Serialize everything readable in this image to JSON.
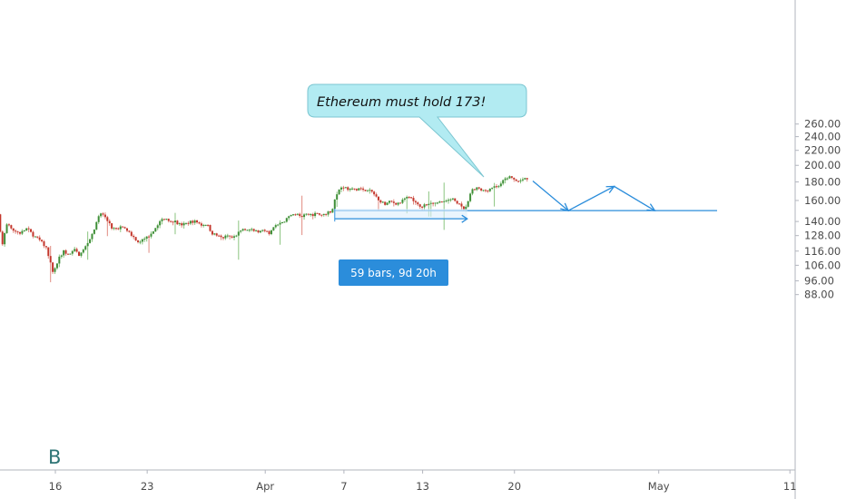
{
  "chart_data": {
    "type": "candlestick",
    "y_scale": "log",
    "ylim": [
      82,
      280
    ],
    "grid": false,
    "y_ticks": [
      "88.00",
      "96.00",
      "106.00",
      "116.00",
      "128.00",
      "140.00",
      "160.00",
      "180.00",
      "200.00",
      "220.00",
      "240.00",
      "260.00"
    ],
    "x_ticks": [
      "16",
      "23",
      "Apr",
      "7",
      "13",
      "20",
      "May",
      "11"
    ],
    "x_tick_days": [
      0,
      7,
      16,
      22,
      28,
      35,
      46,
      56
    ],
    "watermark": "B",
    "colors": {
      "up": "#3e8e37",
      "down": "#c3352b",
      "drawing": "#2b8ddb"
    },
    "price_path": [
      [
        -5.2,
        195
      ],
      [
        -5.1,
        186
      ],
      [
        -4.9,
        176
      ],
      [
        -4.7,
        140
      ],
      [
        -4.5,
        108
      ],
      [
        -4.2,
        146
      ],
      [
        -3.9,
        120
      ],
      [
        -3.5,
        139
      ],
      [
        -3.0,
        132
      ],
      [
        -2.5,
        130
      ],
      [
        -2.0,
        134
      ],
      [
        -1.5,
        128
      ],
      [
        -1.0,
        124
      ],
      [
        -0.5,
        118
      ],
      [
        0.0,
        100
      ],
      [
        0.4,
        110
      ],
      [
        0.8,
        116
      ],
      [
        1.2,
        113
      ],
      [
        1.6,
        117
      ],
      [
        2.0,
        113
      ],
      [
        2.4,
        118
      ],
      [
        2.8,
        126
      ],
      [
        3.1,
        133
      ],
      [
        3.4,
        143
      ],
      [
        3.7,
        148
      ],
      [
        4.1,
        141
      ],
      [
        4.5,
        134
      ],
      [
        4.9,
        133
      ],
      [
        5.3,
        136
      ],
      [
        5.7,
        132
      ],
      [
        6.1,
        127
      ],
      [
        6.5,
        123
      ],
      [
        6.9,
        125
      ],
      [
        7.3,
        128
      ],
      [
        7.7,
        133
      ],
      [
        8.1,
        140
      ],
      [
        8.5,
        143
      ],
      [
        8.9,
        141
      ],
      [
        9.3,
        140
      ],
      [
        9.7,
        137
      ],
      [
        10.1,
        138
      ],
      [
        10.5,
        140
      ],
      [
        10.9,
        140
      ],
      [
        11.3,
        137
      ],
      [
        11.7,
        138
      ],
      [
        12.1,
        130
      ],
      [
        12.5,
        128
      ],
      [
        12.9,
        126
      ],
      [
        13.3,
        128
      ],
      [
        13.7,
        126
      ],
      [
        14.1,
        130
      ],
      [
        14.5,
        134
      ],
      [
        14.9,
        133
      ],
      [
        15.3,
        132
      ],
      [
        15.7,
        131
      ],
      [
        16.1,
        132
      ],
      [
        16.5,
        130
      ],
      [
        16.9,
        136
      ],
      [
        17.3,
        138
      ],
      [
        17.7,
        141
      ],
      [
        18.1,
        146
      ],
      [
        18.5,
        147
      ],
      [
        18.9,
        144
      ],
      [
        19.3,
        146
      ],
      [
        19.7,
        146
      ],
      [
        20.1,
        147
      ],
      [
        20.5,
        146
      ],
      [
        20.9,
        148
      ],
      [
        21.2,
        149
      ],
      [
        21.5,
        161
      ],
      [
        21.8,
        172
      ],
      [
        22.1,
        175
      ],
      [
        22.5,
        172
      ],
      [
        22.9,
        171
      ],
      [
        23.3,
        173
      ],
      [
        23.7,
        170
      ],
      [
        24.1,
        171
      ],
      [
        24.5,
        166
      ],
      [
        24.9,
        160
      ],
      [
        25.3,
        156
      ],
      [
        25.7,
        159
      ],
      [
        26.1,
        157
      ],
      [
        26.5,
        158
      ],
      [
        26.9,
        163
      ],
      [
        27.3,
        162
      ],
      [
        27.7,
        156
      ],
      [
        28.1,
        154
      ],
      [
        28.5,
        157
      ],
      [
        28.9,
        158
      ],
      [
        29.3,
        158
      ],
      [
        29.7,
        159
      ],
      [
        30.1,
        160
      ],
      [
        30.5,
        161
      ],
      [
        30.9,
        157
      ],
      [
        31.3,
        150
      ],
      [
        31.6,
        158
      ],
      [
        31.9,
        170
      ],
      [
        32.3,
        173
      ],
      [
        32.7,
        170
      ],
      [
        33.1,
        171
      ],
      [
        33.5,
        174
      ],
      [
        33.9,
        175
      ],
      [
        34.3,
        181
      ],
      [
        34.7,
        186
      ],
      [
        35.0,
        184
      ],
      [
        35.4,
        180
      ],
      [
        35.8,
        183
      ],
      [
        36.1,
        183
      ]
    ],
    "annotations": [
      {
        "type": "callout",
        "text": "Ethereum must hold 173!"
      },
      {
        "type": "measure",
        "label": "59 bars, 9d 20h",
        "from_day": 21.3,
        "to_day": 31.4,
        "price": 150
      },
      {
        "type": "support",
        "price": 150,
        "from_day": 21.3,
        "to_day": 46.5
      },
      {
        "type": "path",
        "points": [
          [
            36.4,
            181
          ],
          [
            39.1,
            150
          ],
          [
            42.6,
            175
          ],
          [
            45.7,
            150
          ]
        ]
      }
    ]
  }
}
